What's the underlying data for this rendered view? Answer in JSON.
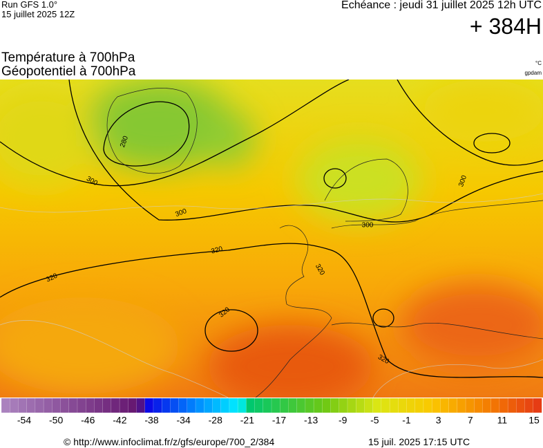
{
  "header": {
    "run": "Run GFS 1.0°",
    "run_date": "15 juillet 2025 12Z",
    "valid": "Echéance : jeudi 31 juillet 2025 12h UTC",
    "lead": "+ 384H"
  },
  "titles": [
    "Température à 700hPa",
    "Géopotentiel à 700hPa"
  ],
  "units": [
    "°C",
    "gpdam"
  ],
  "contour_labels": [
    280,
    300,
    300,
    300,
    300,
    320,
    320,
    320,
    320,
    320
  ],
  "colorbar_labels": [
    -54,
    -50,
    -46,
    -42,
    -38,
    -34,
    -28,
    -21,
    -17,
    -13,
    -9,
    -5,
    -1,
    3,
    7,
    11,
    15
  ],
  "footer": {
    "url": "© http://www.infoclimat.fr/z/gfs/europe/700_2/384",
    "date": "15 juil. 2025 17:15 UTC"
  }
}
